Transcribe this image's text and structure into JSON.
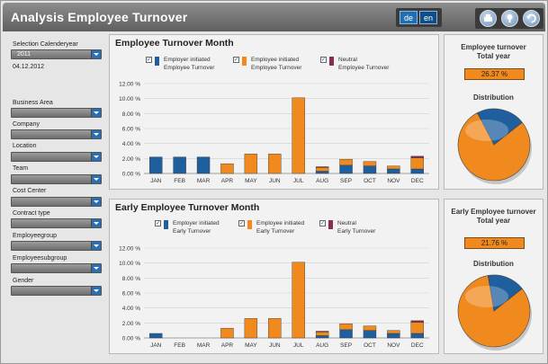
{
  "app": {
    "title": "Analysis Employee Turnover"
  },
  "languages": {
    "de": "de",
    "en": "en"
  },
  "toolbar": {
    "icons": [
      "print-icon",
      "help-icon",
      "back-icon"
    ]
  },
  "filters": {
    "calendar_year": {
      "label": "Selection Calenderyear",
      "value": "2011"
    },
    "date": "04.12.2012",
    "fields": [
      {
        "label": "Business Area",
        "value": ""
      },
      {
        "label": "Company",
        "value": ""
      },
      {
        "label": "Location",
        "value": ""
      },
      {
        "label": "Team",
        "value": ""
      },
      {
        "label": "Cost Center",
        "value": ""
      },
      {
        "label": "Contract type",
        "value": ""
      },
      {
        "label": "Employeegroup",
        "value": ""
      },
      {
        "label": "Employeesubgroup",
        "value": ""
      },
      {
        "label": "Gender",
        "value": ""
      }
    ]
  },
  "panel1": {
    "title": "Employee Turnover Month",
    "legend": [
      {
        "line1": "Employer initiated",
        "line2": "Employee Turnover",
        "checked": "✓"
      },
      {
        "line1": "Employee initiated",
        "line2": "Employee Turnover",
        "checked": "✓"
      },
      {
        "line1": "Neutral",
        "line2": "Employee Turnover",
        "checked": "✓"
      }
    ]
  },
  "panel2": {
    "title": "Early Employee Turnover Month",
    "legend": [
      {
        "line1": "Employer initiated",
        "line2": "Early Turnover",
        "checked": "✓"
      },
      {
        "line1": "Employee initiated",
        "line2": "Early Turnover",
        "checked": "✓"
      },
      {
        "line1": "Neutral",
        "line2": "Early Turnover",
        "checked": "✓"
      }
    ]
  },
  "kpi1": {
    "title_line1": "Employee turnover",
    "title_line2": "Total year",
    "value": "26.37 %",
    "distribution": "Distribution",
    "pie": [
      {
        "name": "Employee initiated",
        "share": 0.78
      },
      {
        "name": "Employer initiated",
        "share": 0.22
      }
    ]
  },
  "kpi2": {
    "title_line1": "Early Employee turnover",
    "title_line2": "Total year",
    "value": "21.76 %",
    "distribution": "Distribution",
    "pie": [
      {
        "name": "Employee initiated",
        "share": 0.83
      },
      {
        "name": "Employer initiated",
        "share": 0.17
      }
    ]
  },
  "colors": {
    "employer": "#1f5f9e",
    "employee": "#f08a1e",
    "neutral": "#8a2a55",
    "grid": "#cfcfcf"
  },
  "chart_data": [
    {
      "type": "bar",
      "stacked": true,
      "categories": [
        "JAN",
        "FEB",
        "MAR",
        "APR",
        "MAY",
        "JUN",
        "JUL",
        "AUG",
        "SEP",
        "OCT",
        "NOV",
        "DEC"
      ],
      "ylim": [
        0,
        12
      ],
      "yticks": [
        "0.00 %",
        "2.00 %",
        "4.00 %",
        "6.00 %",
        "8.00 %",
        "10.00 %",
        "12.00 %"
      ],
      "series": [
        {
          "name": "Employer initiated Employee Turnover",
          "values": [
            2.2,
            2.2,
            2.2,
            0,
            0,
            0,
            0,
            0.3,
            1.1,
            1.0,
            0.6,
            0.6
          ]
        },
        {
          "name": "Employee initiated Employee Turnover",
          "values": [
            0,
            0,
            0,
            1.3,
            2.6,
            2.6,
            10.1,
            0.5,
            0.8,
            0.6,
            0.4,
            1.5
          ]
        },
        {
          "name": "Neutral Employee Turnover",
          "values": [
            0,
            0,
            0,
            0,
            0,
            0,
            0,
            0.1,
            0,
            0,
            0,
            0.2
          ]
        }
      ]
    },
    {
      "type": "bar",
      "stacked": true,
      "categories": [
        "JAN",
        "FEB",
        "MAR",
        "APR",
        "MAY",
        "JUN",
        "JUL",
        "AUG",
        "SEP",
        "OCT",
        "NOV",
        "DEC"
      ],
      "ylim": [
        0,
        12
      ],
      "yticks": [
        "0.00 %",
        "2.00 %",
        "4.00 %",
        "6.00 %",
        "8.00 %",
        "10.00 %",
        "12.00 %"
      ],
      "series": [
        {
          "name": "Employer initiated Early Turnover",
          "values": [
            0.6,
            0,
            0,
            0,
            0,
            0,
            0,
            0.3,
            1.1,
            1.0,
            0.6,
            0.6
          ]
        },
        {
          "name": "Employee initiated Early Turnover",
          "values": [
            0,
            0,
            0,
            1.3,
            2.6,
            2.6,
            10.1,
            0.5,
            0.8,
            0.6,
            0.4,
            1.5
          ]
        },
        {
          "name": "Neutral Early Turnover",
          "values": [
            0,
            0,
            0,
            0,
            0,
            0,
            0,
            0.1,
            0,
            0,
            0,
            0.2
          ]
        }
      ]
    }
  ]
}
